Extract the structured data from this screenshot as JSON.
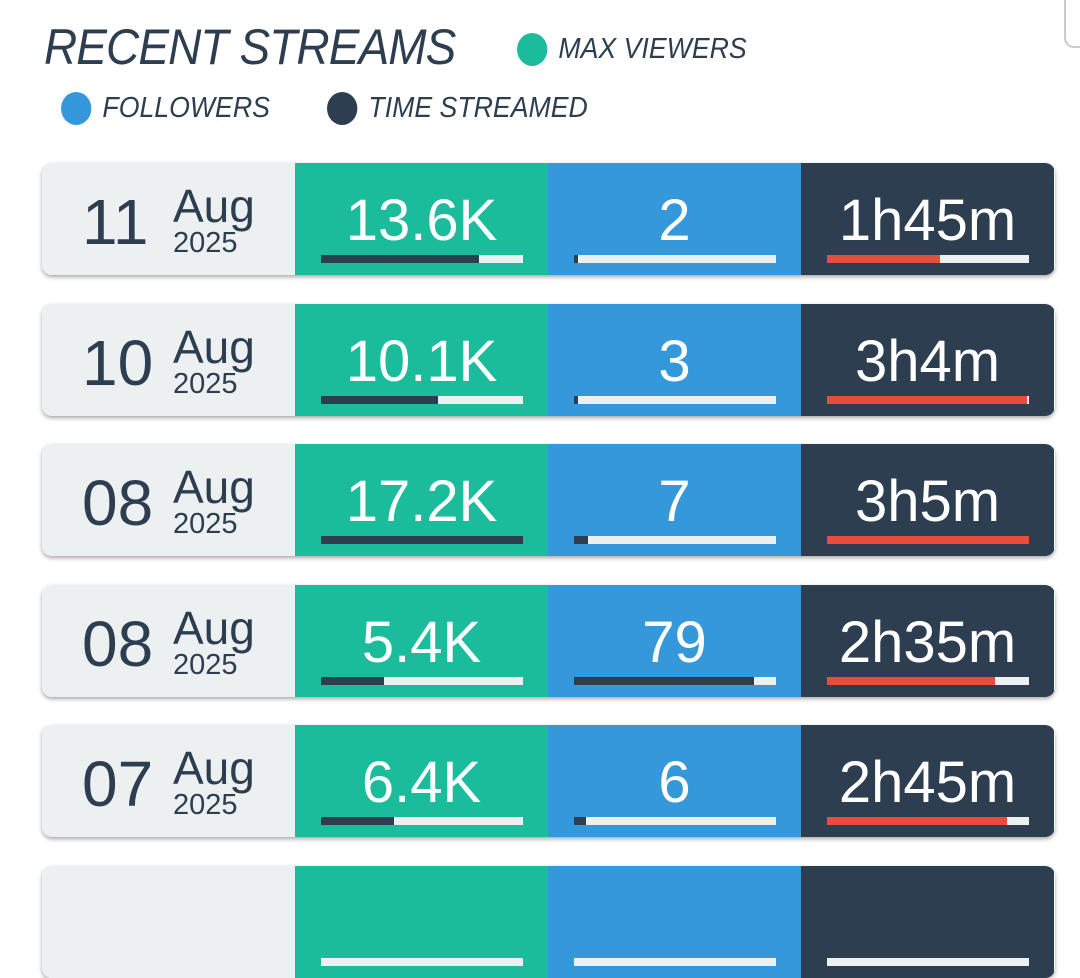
{
  "title": "RECENT STREAMS",
  "legend": [
    {
      "label": "MAX VIEWERS",
      "color": "#1abc9c"
    },
    {
      "label": "FOLLOWERS",
      "color": "#3498db"
    },
    {
      "label": "TIME STREAMED",
      "color": "#2c3e50"
    }
  ],
  "rows": [
    {
      "day": "11",
      "month": "Aug",
      "year": "2025",
      "viewers": "13.6K",
      "viewers_pct": 0.78,
      "followers": "2",
      "followers_pct": 0.02,
      "time": "1h45m",
      "time_pct": 0.56
    },
    {
      "day": "10",
      "month": "Aug",
      "year": "2025",
      "viewers": "10.1K",
      "viewers_pct": 0.58,
      "followers": "3",
      "followers_pct": 0.02,
      "time": "3h4m",
      "time_pct": 0.99
    },
    {
      "day": "08",
      "month": "Aug",
      "year": "2025",
      "viewers": "17.2K",
      "viewers_pct": 1.0,
      "followers": "7",
      "followers_pct": 0.07,
      "time": "3h5m",
      "time_pct": 1.0
    },
    {
      "day": "08",
      "month": "Aug",
      "year": "2025",
      "viewers": "5.4K",
      "viewers_pct": 0.31,
      "followers": "79",
      "followers_pct": 0.89,
      "time": "2h35m",
      "time_pct": 0.83
    },
    {
      "day": "07",
      "month": "Aug",
      "year": "2025",
      "viewers": "6.4K",
      "viewers_pct": 0.36,
      "followers": "6",
      "followers_pct": 0.06,
      "time": "2h45m",
      "time_pct": 0.89
    },
    {
      "day": "",
      "month": "",
      "year": "",
      "viewers": "",
      "viewers_pct": 0,
      "followers": "",
      "followers_pct": 0,
      "time": "",
      "time_pct": 0
    }
  ]
}
